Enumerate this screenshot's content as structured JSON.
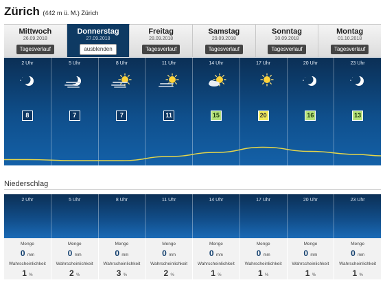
{
  "location": {
    "name": "Zürich",
    "detail": "(442 m ü. M.) Zürich"
  },
  "tabs": [
    {
      "day": "Mittwoch",
      "date": "26.09.2018",
      "button": "Tagesverlauf",
      "active": false
    },
    {
      "day": "Donnerstag",
      "date": "27.09.2018",
      "button": "ausblenden",
      "active": true
    },
    {
      "day": "Freitag",
      "date": "28.09.2018",
      "button": "Tagesverlauf",
      "active": false
    },
    {
      "day": "Samstag",
      "date": "29.09.2018",
      "button": "Tagesverlauf",
      "active": false
    },
    {
      "day": "Sonntag",
      "date": "30.09.2018",
      "button": "Tagesverlauf",
      "active": false
    },
    {
      "day": "Montag",
      "date": "01.10.2018",
      "button": "Tagesverlauf",
      "active": false
    }
  ],
  "hourly": [
    {
      "hour": "2 Uhr",
      "icon": "moon-clear-icon",
      "temp": "8",
      "level": "cold"
    },
    {
      "hour": "5 Uhr",
      "icon": "moon-fog-icon",
      "temp": "7",
      "level": "cold"
    },
    {
      "hour": "8 Uhr",
      "icon": "sun-fog-icon",
      "temp": "7",
      "level": "cold"
    },
    {
      "hour": "11 Uhr",
      "icon": "sun-haze-icon",
      "temp": "11",
      "level": "cold"
    },
    {
      "hour": "14 Uhr",
      "icon": "sun-cloud-icon",
      "temp": "15",
      "level": "mid"
    },
    {
      "hour": "17 Uhr",
      "icon": "sun-clear-icon",
      "temp": "20",
      "level": "warm"
    },
    {
      "hour": "20 Uhr",
      "icon": "moon-clear-icon",
      "temp": "16",
      "level": "mid"
    },
    {
      "hour": "23 Uhr",
      "icon": "moon-clear-icon",
      "temp": "13",
      "level": "mid"
    }
  ],
  "precipitation": {
    "title": "Niederschlag",
    "amount_label": "Menge",
    "amount_unit": "mm",
    "probability_label": "Wahrscheinlichkeit",
    "probability_unit": "%",
    "items": [
      {
        "hour": "2 Uhr",
        "amount": "0",
        "probability": "1"
      },
      {
        "hour": "5 Uhr",
        "amount": "0",
        "probability": "2"
      },
      {
        "hour": "8 Uhr",
        "amount": "0",
        "probability": "3"
      },
      {
        "hour": "11 Uhr",
        "amount": "0",
        "probability": "2"
      },
      {
        "hour": "14 Uhr",
        "amount": "0",
        "probability": "1"
      },
      {
        "hour": "17 Uhr",
        "amount": "0",
        "probability": "1"
      },
      {
        "hour": "20 Uhr",
        "amount": "0",
        "probability": "1"
      },
      {
        "hour": "23 Uhr",
        "amount": "0",
        "probability": "1"
      }
    ]
  },
  "colors": {
    "panel_dark": "#0b2f55",
    "panel_light": "#1461a8",
    "temp_curve": "#e6d64a",
    "temp_mid": "#b6e27a",
    "temp_warm": "#f2ea5a"
  }
}
